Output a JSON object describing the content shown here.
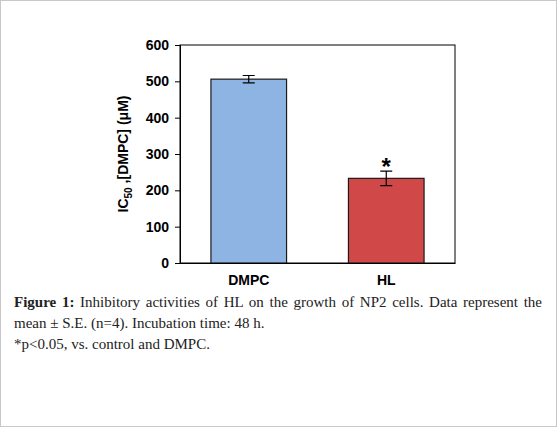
{
  "chart_data": {
    "type": "bar",
    "categories": [
      "DMPC",
      "HL"
    ],
    "values": [
      506,
      233
    ],
    "errors": [
      10,
      20
    ],
    "colors": [
      "#8db4e2",
      "#d04848"
    ],
    "ylabel": [
      "IC",
      "50",
      " ,[DMPC] (μM)"
    ],
    "ylim": [
      0,
      600
    ],
    "yticks": [
      0,
      100,
      200,
      300,
      400,
      500,
      600
    ],
    "grid": false,
    "annotations": [
      {
        "text": "*",
        "category": "HL"
      }
    ],
    "caption": {
      "label": "Figure 1:",
      "text": "Inhibitory activities of HL on the growth of NP2 cells. Data represent the mean ± S.E. (n=4). Incubation time: 48 h.",
      "note": "*p<0.05, vs. control and DMPC."
    }
  }
}
